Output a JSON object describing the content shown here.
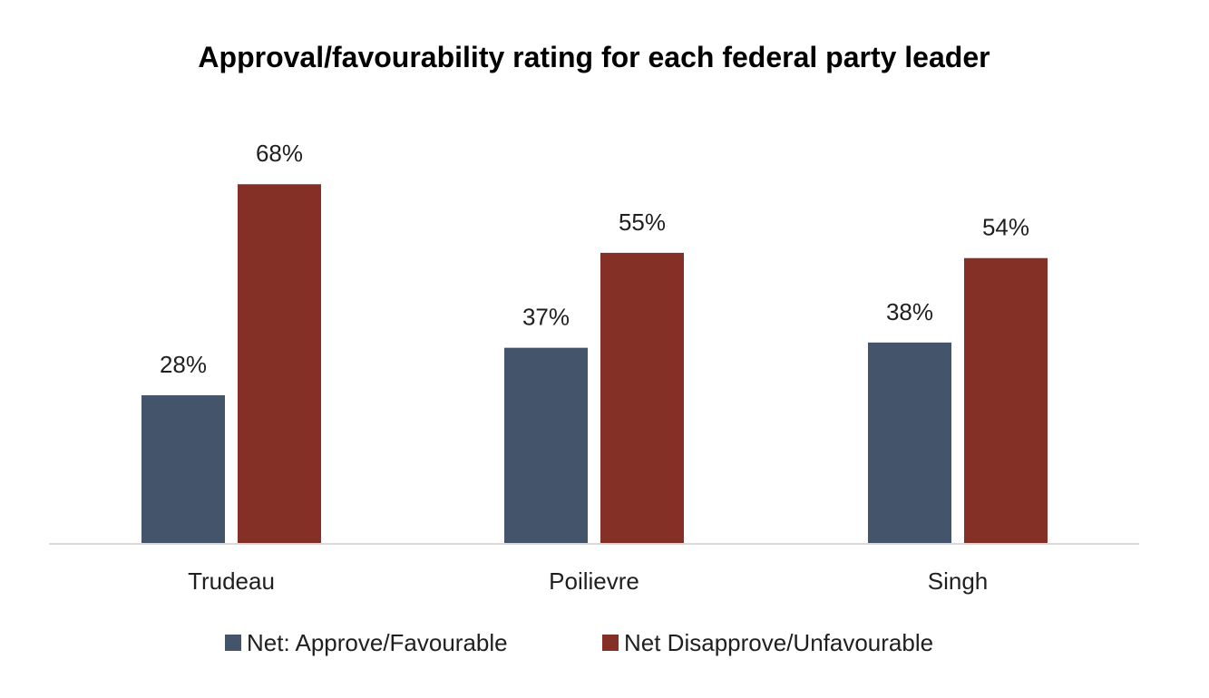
{
  "chart_data": {
    "type": "bar",
    "title": "Approval/favourability rating for each federal party leader",
    "categories": [
      "Trudeau",
      "Poilievre",
      "Singh"
    ],
    "series": [
      {
        "name": "Net: Approve/Favourable",
        "values": [
          28,
          37,
          38
        ],
        "labels": [
          "28%",
          "37%",
          "38%"
        ],
        "color": "#44546a"
      },
      {
        "name": "Net Disapprove/Unfavourable",
        "values": [
          68,
          55,
          54
        ],
        "labels": [
          "68%",
          "55%",
          "54%"
        ],
        "color": "#843026"
      }
    ],
    "xlabel": "",
    "ylabel": "",
    "ylim": [
      0,
      80
    ],
    "grid": false,
    "legend_position": "bottom",
    "axis_line_color": "#d9d9d9"
  }
}
